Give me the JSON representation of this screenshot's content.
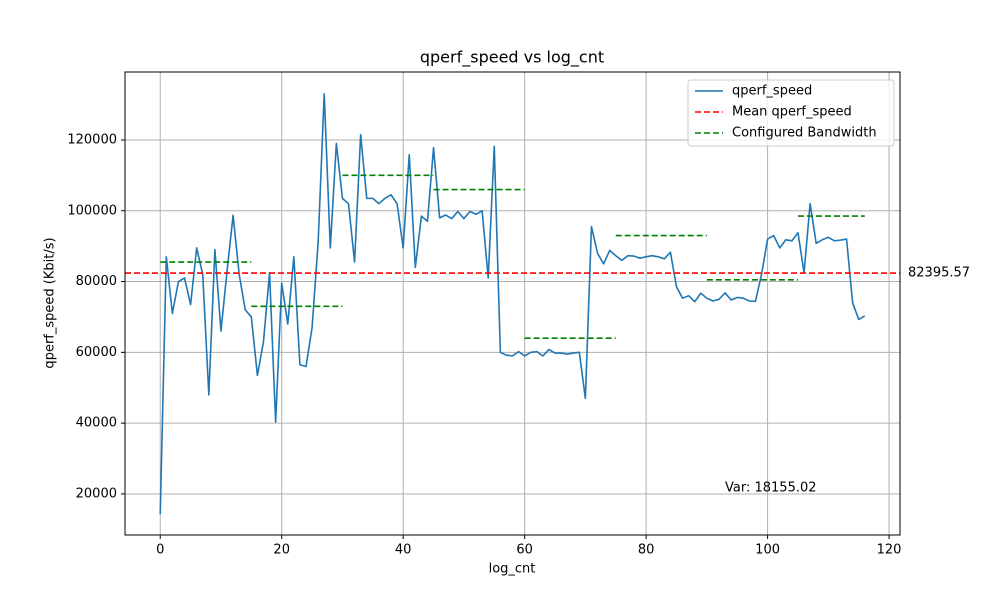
{
  "chart_data": {
    "type": "line",
    "title": "qperf_speed vs log_cnt",
    "xlabel": "log_cnt",
    "ylabel": "qperf_speed (Kbit/s)",
    "x": [
      0,
      1,
      2,
      3,
      4,
      5,
      6,
      7,
      8,
      9,
      10,
      11,
      12,
      13,
      14,
      15,
      16,
      17,
      18,
      19,
      20,
      21,
      22,
      23,
      24,
      25,
      26,
      27,
      28,
      29,
      30,
      31,
      32,
      33,
      34,
      35,
      36,
      37,
      38,
      39,
      40,
      41,
      42,
      43,
      44,
      45,
      46,
      47,
      48,
      49,
      50,
      51,
      52,
      53,
      54,
      55,
      56,
      57,
      58,
      59,
      60,
      61,
      62,
      63,
      64,
      65,
      66,
      67,
      68,
      69,
      70,
      71,
      72,
      73,
      74,
      75,
      76,
      77,
      78,
      79,
      80,
      81,
      82,
      83,
      84,
      85,
      86,
      87,
      88,
      89,
      90,
      91,
      92,
      93,
      94,
      95,
      96,
      97,
      98,
      99,
      100,
      101,
      102,
      103,
      104,
      105,
      106,
      107,
      108,
      109,
      110,
      111,
      112,
      113,
      114,
      115,
      116
    ],
    "series": [
      {
        "name": "qperf_speed",
        "color": "#1f77b4",
        "values": [
          14300,
          87000,
          71000,
          80000,
          81000,
          73500,
          89500,
          82000,
          48000,
          89000,
          66000,
          83000,
          98700,
          82000,
          72000,
          70000,
          53500,
          63000,
          82500,
          40300,
          79500,
          68000,
          87000,
          56500,
          56000,
          67000,
          91000,
          133000,
          89500,
          119000,
          103500,
          102000,
          85500,
          121500,
          103500,
          103500,
          102000,
          103500,
          104500,
          102000,
          89500,
          115800,
          84000,
          98500,
          97000,
          117800,
          98000,
          98800,
          97800,
          99800,
          97800,
          99800,
          99000,
          100000,
          81000,
          118200,
          60000,
          59200,
          59000,
          60200,
          59000,
          60000,
          60200,
          59000,
          60800,
          59800,
          59800,
          59500,
          59800,
          60000,
          47000,
          95500,
          88000,
          85000,
          88800,
          87300,
          86000,
          87300,
          87200,
          86600,
          87000,
          87300,
          87000,
          86400,
          88300,
          78500,
          75300,
          76000,
          74300,
          76700,
          75300,
          74500,
          75000,
          76800,
          74800,
          75500,
          75300,
          74500,
          74400,
          82000,
          92000,
          93000,
          89500,
          91800,
          91500,
          93800,
          82500,
          102000,
          90800,
          91800,
          92500,
          91500,
          91700,
          92000,
          74000,
          69300,
          70300
        ]
      }
    ],
    "mean": {
      "name": "Mean qperf_speed",
      "value": 82395.57,
      "color": "red"
    },
    "bandwidth": {
      "name": "Configured Bandwidth",
      "color": "green",
      "segments": [
        {
          "start": 0,
          "end": 15,
          "value": 85500
        },
        {
          "start": 15,
          "end": 30,
          "value": 73000
        },
        {
          "start": 30,
          "end": 45,
          "value": 110000
        },
        {
          "start": 45,
          "end": 60,
          "value": 106000
        },
        {
          "start": 60,
          "end": 75,
          "value": 64000
        },
        {
          "start": 75,
          "end": 90,
          "value": 93000
        },
        {
          "start": 90,
          "end": 105,
          "value": 80500
        },
        {
          "start": 105,
          "end": 116,
          "value": 98500
        }
      ]
    },
    "annotation": {
      "text": "Var: 18155.02",
      "color": "blue"
    },
    "xlim": [
      -5.8,
      121.8
    ],
    "ylim": [
      8400,
      139200
    ],
    "xticks": [
      0,
      20,
      40,
      60,
      80,
      100,
      120
    ],
    "yticks": [
      20000,
      40000,
      60000,
      80000,
      100000,
      120000
    ],
    "grid": true,
    "legend": "upper right"
  }
}
